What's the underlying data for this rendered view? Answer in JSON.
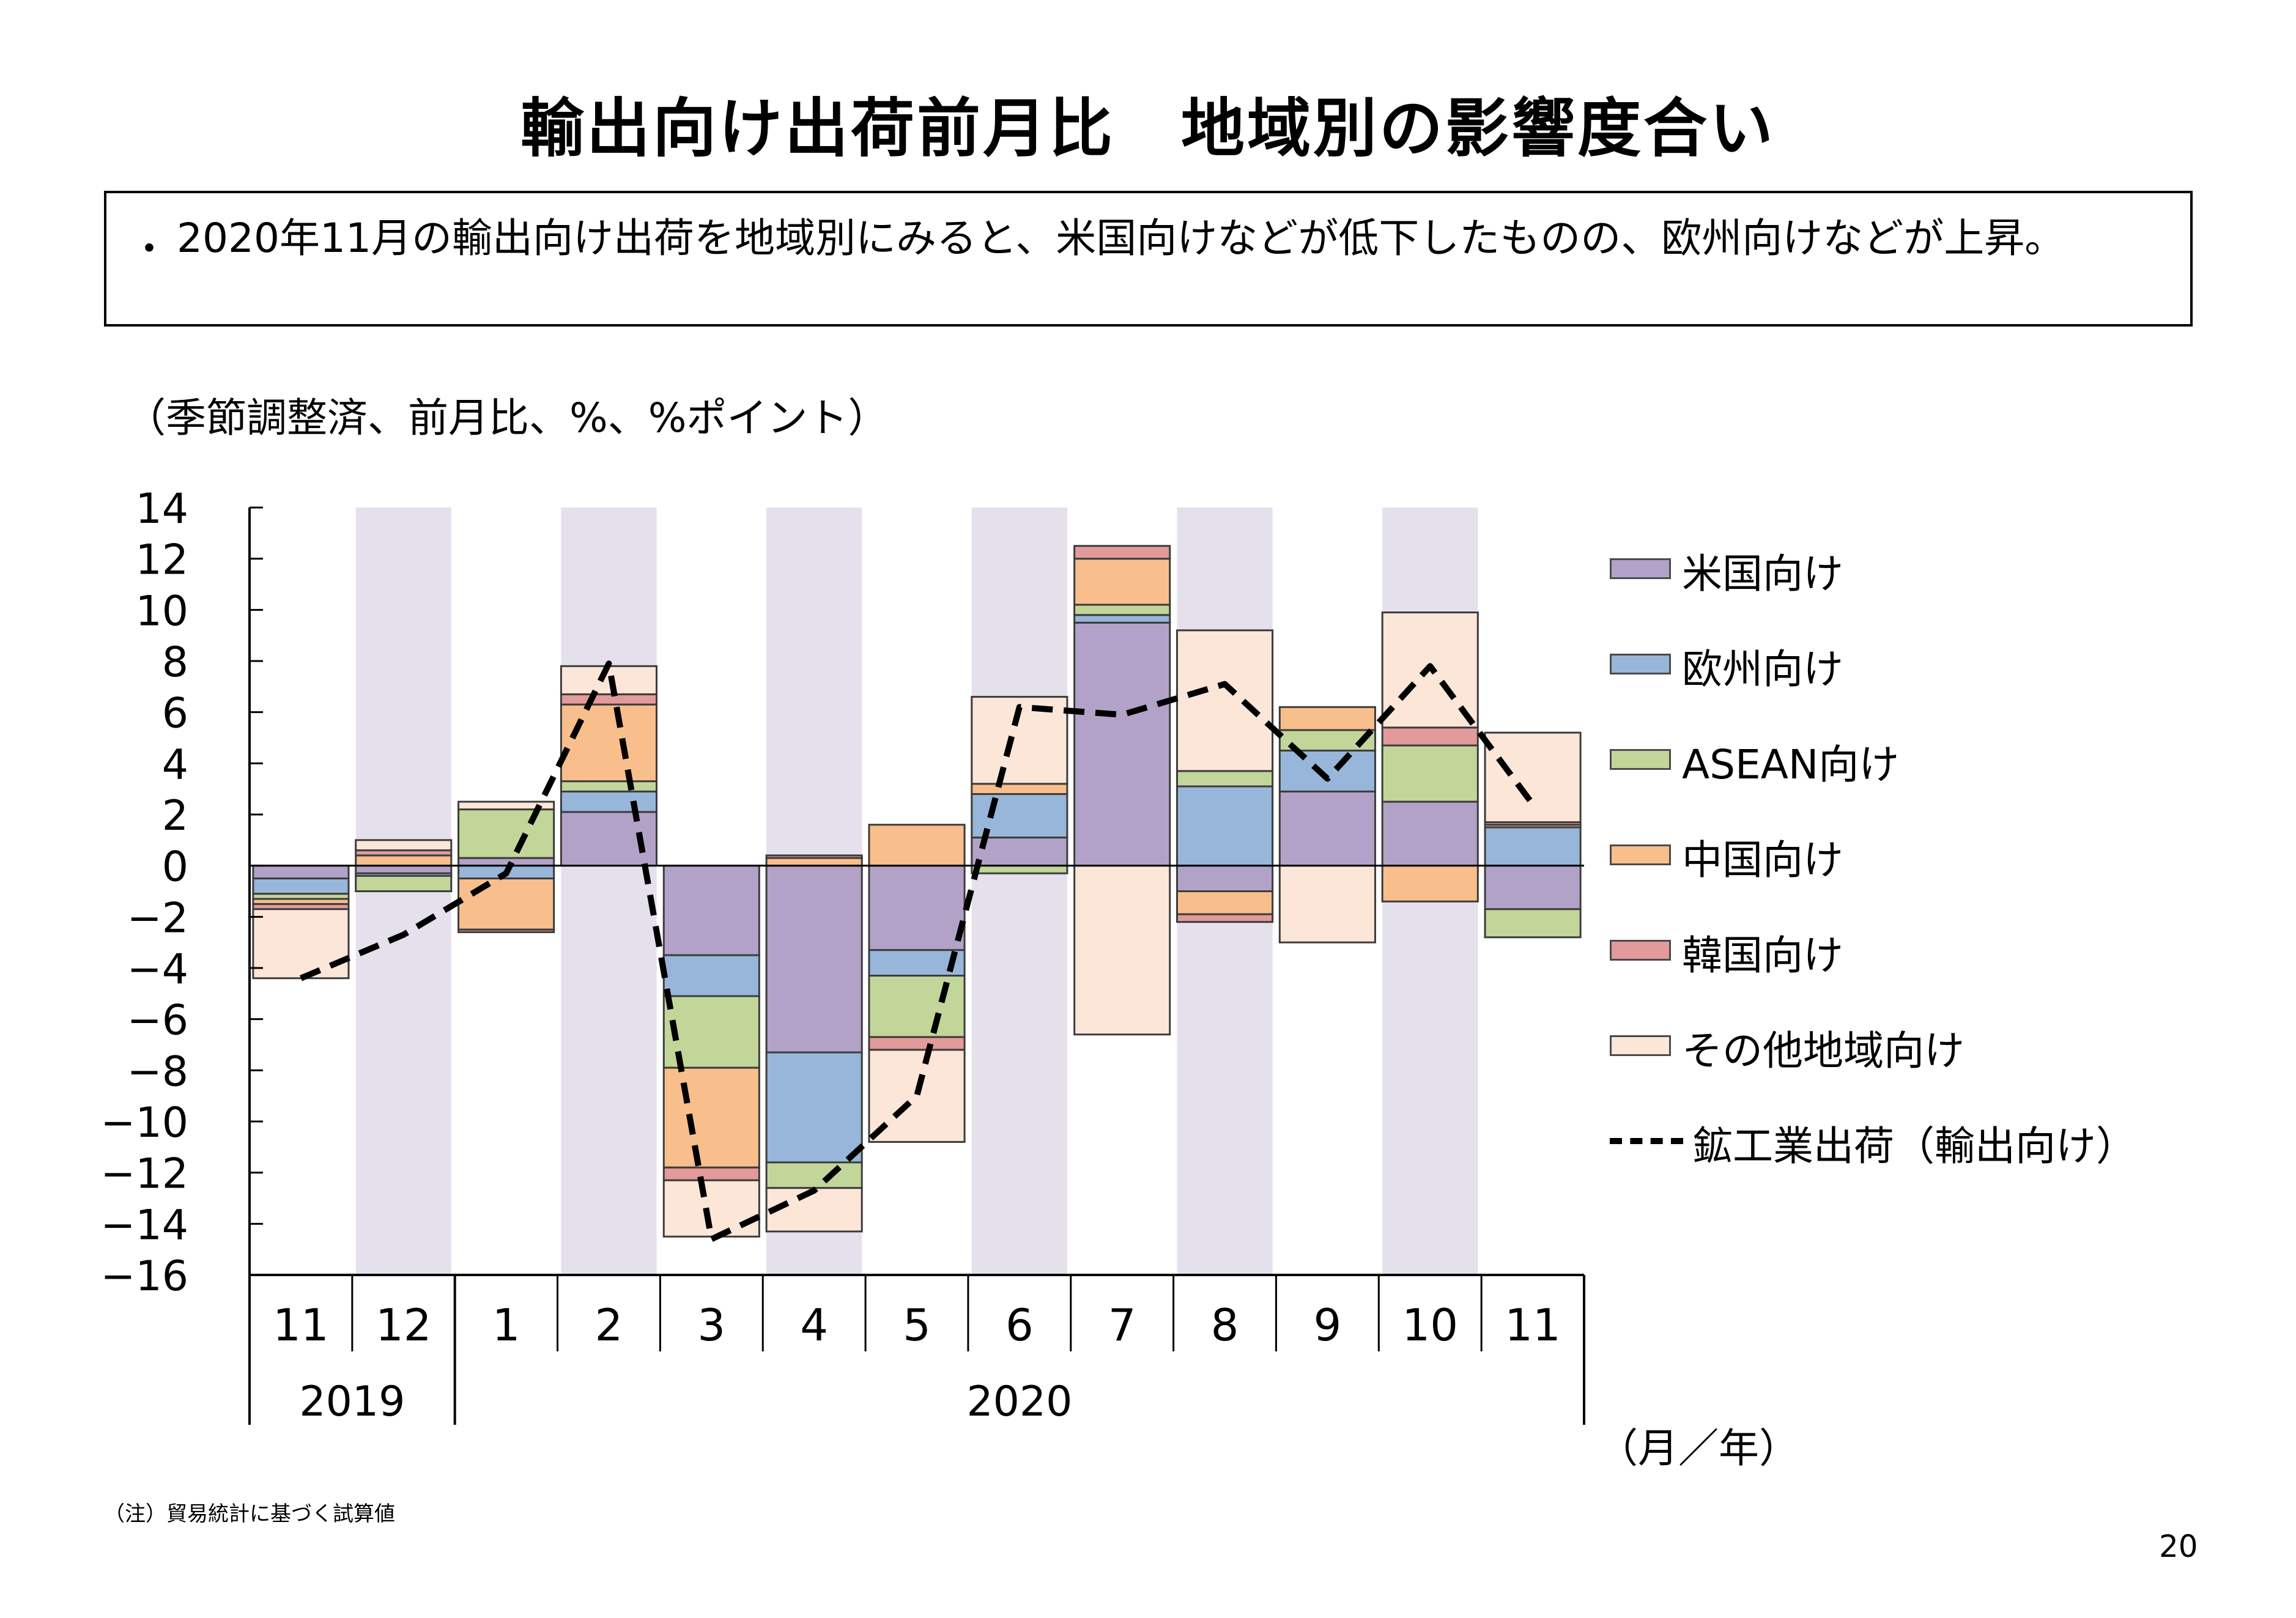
{
  "title": "輸出向け出荷前月比　地域別の影響度合い",
  "summary": {
    "bullet": "・",
    "text": "2020年11月の輸出向け出荷を地域別にみると、米国向けなどが低下したものの、欧州向けなどが上昇。"
  },
  "unit_note": "（季節調整済、前月比、%、%ポイント）",
  "axis_unit": "（月／年）",
  "footnote": "（注）貿易統計に基づく試算値",
  "page_number": "20",
  "colors": {
    "us": "#b3a2c8",
    "eu": "#97b6d9",
    "asean": "#c2d69a",
    "china": "#f8be8c",
    "korea": "#e39a9a",
    "other": "#fce6d8",
    "shade": "#e4e0ec"
  },
  "chart_data": {
    "type": "bar",
    "stacked": true,
    "categories": [
      "11",
      "12",
      "1",
      "2",
      "3",
      "4",
      "5",
      "6",
      "7",
      "8",
      "9",
      "10",
      "11"
    ],
    "year_labels": [
      {
        "label": "2019",
        "from": 0,
        "to": 1
      },
      {
        "label": "2020",
        "from": 2,
        "to": 12
      }
    ],
    "shaded_categories": [
      1,
      3,
      5,
      7,
      9,
      11
    ],
    "ylim": [
      -16,
      14
    ],
    "yticks": [
      14,
      12,
      10,
      8,
      6,
      4,
      2,
      0,
      -2,
      -4,
      -6,
      -8,
      -10,
      -12,
      -14,
      -16
    ],
    "legend_position": "right",
    "series": [
      {
        "key": "us",
        "name": "米国向け",
        "values": [
          -0.5,
          -0.3,
          0.3,
          2.1,
          -3.5,
          -7.3,
          -3.3,
          1.1,
          9.5,
          -1.0,
          2.9,
          2.5,
          -1.7
        ]
      },
      {
        "key": "eu",
        "name": "欧州向け",
        "values": [
          -0.6,
          -0.1,
          -0.5,
          0.8,
          -1.6,
          -4.3,
          -1.0,
          1.7,
          0.3,
          3.1,
          1.6,
          0.0,
          1.5
        ]
      },
      {
        "key": "asean",
        "name": "ASEAN向け",
        "values": [
          -0.2,
          -0.6,
          1.9,
          0.4,
          -2.8,
          -1.0,
          -2.4,
          -0.3,
          0.4,
          0.6,
          0.8,
          2.2,
          -1.1
        ]
      },
      {
        "key": "china",
        "name": "中国向け",
        "values": [
          -0.2,
          0.4,
          -2.0,
          3.0,
          -3.9,
          0.3,
          1.6,
          0.4,
          1.8,
          -0.9,
          0.9,
          -1.4,
          0.1
        ]
      },
      {
        "key": "korea",
        "name": "韓国向け",
        "values": [
          -0.2,
          0.2,
          -0.1,
          0.4,
          -0.5,
          0.1,
          -0.5,
          0.0,
          0.5,
          -0.3,
          0.0,
          0.7,
          0.1
        ]
      },
      {
        "key": "other",
        "name": "その他地域向け",
        "values": [
          -2.7,
          0.4,
          0.3,
          1.1,
          -2.2,
          -1.7,
          -3.6,
          3.4,
          -6.6,
          5.5,
          -3.0,
          4.5,
          3.5
        ]
      }
    ],
    "line": {
      "name": "鉱工業出荷（輸出向け）",
      "values": [
        -4.4,
        -2.7,
        -0.3,
        7.9,
        -14.6,
        -12.7,
        -9.0,
        6.2,
        5.9,
        7.1,
        3.4,
        7.8,
        2.4
      ]
    }
  }
}
